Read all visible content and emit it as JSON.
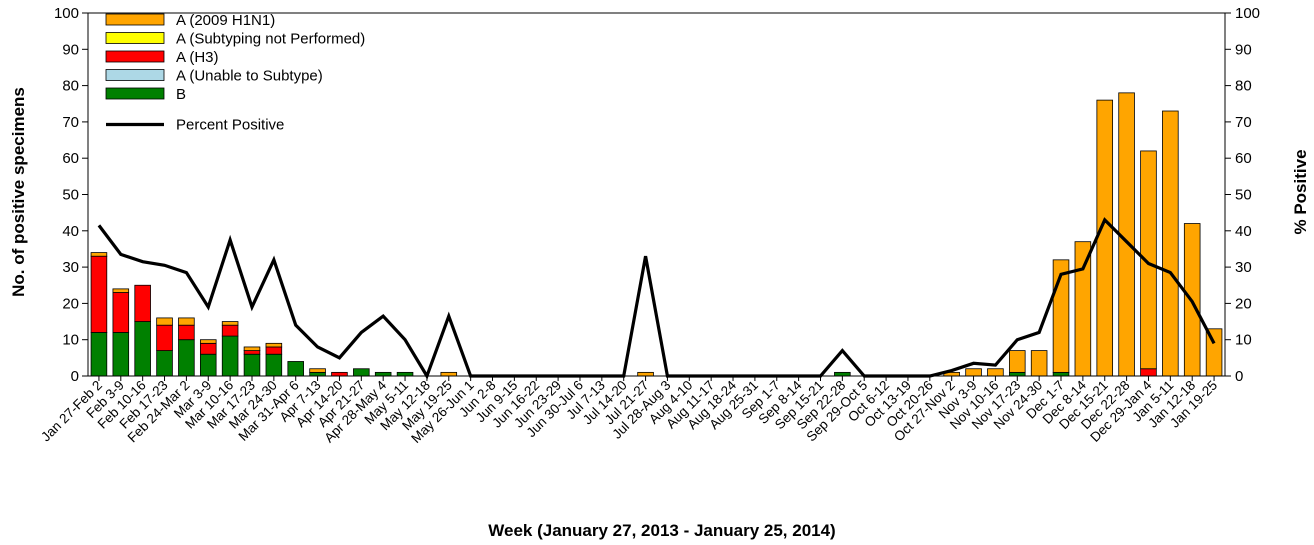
{
  "chart_data": {
    "type": "bar",
    "stacked": true,
    "xlabel": "Week (January 27, 2013 - January 25, 2014)",
    "ylabel": "No. of positive specimens",
    "y2label": "% Positive",
    "ylim": [
      0,
      100
    ],
    "y2lim": [
      0,
      100
    ],
    "yticks": [
      0,
      10,
      20,
      30,
      40,
      50,
      60,
      70,
      80,
      90,
      100
    ],
    "grid": false,
    "legend_position": "top-left",
    "categories": [
      "Jan 27-Feb 2",
      "Feb 3-9",
      "Feb 10-16",
      "Feb 17-23",
      "Feb 24-Mar 2",
      "Mar 3-9",
      "Mar 10-16",
      "Mar 17-23",
      "Mar 24-30",
      "Mar 31-Apr 6",
      "Apr 7-13",
      "Apr 14-20",
      "Apr 21-27",
      "Apr 28-May 4",
      "May 5-11",
      "May 12-18",
      "May 19-25",
      "May 26-Jun 1",
      "Jun 2-8",
      "Jun 9-15",
      "Jun 16-22",
      "Jun 23-29",
      "Jun 30-Jul 6",
      "Jul 7-13",
      "Jul 14-20",
      "Jul 21-27",
      "Jul 28-Aug 3",
      "Aug 4-10",
      "Aug 11-17",
      "Aug 18-24",
      "Aug 25-31",
      "Sep 1-7",
      "Sep 8-14",
      "Sep 15-21",
      "Sep 22-28",
      "Sep 29-Oct 5",
      "Oct 6-12",
      "Oct 13-19",
      "Oct 20-26",
      "Oct 27-Nov 2",
      "Nov 3-9",
      "Nov 10-16",
      "Nov 17-23",
      "Nov 24-30",
      "Dec 1-7",
      "Dec 8-14",
      "Dec 15-21",
      "Dec 22-28",
      "Dec 29-Jan 4",
      "Jan 5-11",
      "Jan 12-18",
      "Jan 19-25"
    ],
    "series": [
      {
        "name": "B",
        "color": "#008000",
        "kind": "bar",
        "values": [
          12,
          12,
          15,
          7,
          10,
          6,
          11,
          6,
          6,
          4,
          1,
          0,
          2,
          1,
          1,
          0,
          0,
          0,
          0,
          0,
          0,
          0,
          0,
          0,
          0,
          0,
          0,
          0,
          0,
          0,
          0,
          0,
          0,
          0,
          1,
          0,
          0,
          0,
          0,
          0,
          0,
          0,
          1,
          0,
          1,
          0,
          0,
          0,
          0,
          0,
          0,
          0
        ]
      },
      {
        "name": "A (Unable to Subtype)",
        "color": "#add8e6",
        "kind": "bar",
        "values": [
          0,
          0,
          0,
          0,
          0,
          0,
          0,
          0,
          0,
          0,
          0,
          0,
          0,
          0,
          0,
          0,
          0,
          0,
          0,
          0,
          0,
          0,
          0,
          0,
          0,
          0,
          0,
          0,
          0,
          0,
          0,
          0,
          0,
          0,
          0,
          0,
          0,
          0,
          0,
          0,
          0,
          0,
          0,
          0,
          0,
          0,
          0,
          0,
          0,
          0,
          0,
          0
        ]
      },
      {
        "name": "A (H3)",
        "color": "#ff0000",
        "kind": "bar",
        "values": [
          21,
          11,
          10,
          7,
          4,
          3,
          3,
          1,
          2,
          0,
          0,
          1,
          0,
          0,
          0,
          0,
          0,
          0,
          0,
          0,
          0,
          0,
          0,
          0,
          0,
          0,
          0,
          0,
          0,
          0,
          0,
          0,
          0,
          0,
          0,
          0,
          0,
          0,
          0,
          0,
          0,
          0,
          0,
          0,
          0,
          0,
          0,
          0,
          2,
          0,
          0,
          0
        ]
      },
      {
        "name": "A (Subtyping not Performed)",
        "color": "#ffff00",
        "kind": "bar",
        "values": [
          0,
          0,
          0,
          0,
          0,
          0,
          0,
          0,
          0,
          0,
          0,
          0,
          0,
          0,
          0,
          0,
          0,
          0,
          0,
          0,
          0,
          0,
          0,
          0,
          0,
          0,
          0,
          0,
          0,
          0,
          0,
          0,
          0,
          0,
          0,
          0,
          0,
          0,
          0,
          0,
          0,
          0,
          0,
          0,
          0,
          0,
          0,
          0,
          0,
          0,
          0,
          0
        ]
      },
      {
        "name": "A (2009 H1N1)",
        "color": "#ffa500",
        "kind": "bar",
        "values": [
          1,
          1,
          0,
          2,
          2,
          1,
          1,
          1,
          1,
          0,
          1,
          0,
          0,
          0,
          0,
          0,
          1,
          0,
          0,
          0,
          0,
          0,
          0,
          0,
          0,
          1,
          0,
          0,
          0,
          0,
          0,
          0,
          0,
          0,
          0,
          0,
          0,
          0,
          0,
          1,
          2,
          2,
          6,
          7,
          31,
          37,
          76,
          78,
          60,
          73,
          42,
          13
        ]
      },
      {
        "name": "Percent Positive",
        "color": "#000000",
        "kind": "line",
        "axis": "right",
        "values": [
          41.5,
          33.5,
          31.5,
          30.5,
          28.5,
          19,
          37.5,
          19,
          32,
          14,
          8,
          5,
          12,
          16.5,
          10,
          0,
          16.5,
          0,
          0,
          0,
          0,
          0,
          0,
          0,
          0,
          33,
          0,
          0,
          0,
          0,
          0,
          0,
          0,
          0,
          7,
          0,
          0,
          0,
          0,
          1.5,
          3.5,
          3,
          10,
          12,
          28,
          29.5,
          43,
          37,
          31,
          28.5,
          20.5,
          9
        ]
      }
    ],
    "legend": [
      {
        "label": "A (2009 H1N1)",
        "color": "#ffa500",
        "kind": "box"
      },
      {
        "label": "A (Subtyping not Performed)",
        "color": "#ffff00",
        "kind": "box"
      },
      {
        "label": "A (H3)",
        "color": "#ff0000",
        "kind": "box"
      },
      {
        "label": "A (Unable to Subtype)",
        "color": "#add8e6",
        "kind": "box"
      },
      {
        "label": "B",
        "color": "#008000",
        "kind": "box"
      },
      {
        "label": "Percent Positive",
        "color": "#000000",
        "kind": "line"
      }
    ]
  }
}
